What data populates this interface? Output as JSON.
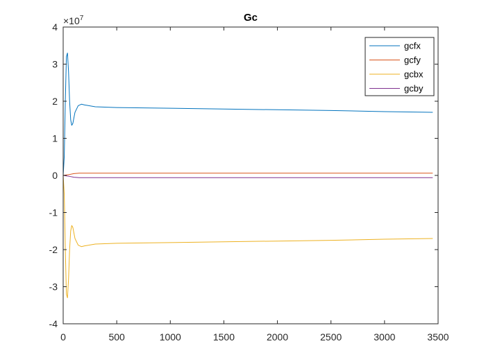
{
  "chart_data": {
    "type": "line",
    "title": "Gc",
    "xlabel": "",
    "ylabel": "",
    "xlim": [
      0,
      3500
    ],
    "ylim": [
      -4,
      4
    ],
    "y_scale_multiplier": "×10",
    "y_scale_exponent": "7",
    "x_ticks": [
      "0",
      "500",
      "1000",
      "1500",
      "2000",
      "2500",
      "3000",
      "3500"
    ],
    "y_ticks": [
      "-4",
      "-3",
      "-2",
      "-1",
      "0",
      "1",
      "2",
      "3",
      "4"
    ],
    "grid": false,
    "legend_position": "top-right",
    "series": [
      {
        "name": "gcfx",
        "color": "#0072BD",
        "points": [
          [
            0,
            0
          ],
          [
            10,
            0.5
          ],
          [
            20,
            2.0
          ],
          [
            30,
            3.2
          ],
          [
            40,
            3.3
          ],
          [
            50,
            2.8
          ],
          [
            60,
            2.0
          ],
          [
            70,
            1.5
          ],
          [
            80,
            1.35
          ],
          [
            90,
            1.4
          ],
          [
            110,
            1.7
          ],
          [
            140,
            1.88
          ],
          [
            170,
            1.92
          ],
          [
            200,
            1.9
          ],
          [
            300,
            1.85
          ],
          [
            500,
            1.83
          ],
          [
            1000,
            1.81
          ],
          [
            1500,
            1.79
          ],
          [
            2000,
            1.77
          ],
          [
            2500,
            1.75
          ],
          [
            3000,
            1.72
          ],
          [
            3450,
            1.7
          ]
        ]
      },
      {
        "name": "gcfy",
        "color": "#D95319",
        "points": [
          [
            0,
            0
          ],
          [
            50,
            0.02
          ],
          [
            100,
            0.05
          ],
          [
            150,
            0.06
          ],
          [
            200,
            0.06
          ],
          [
            1000,
            0.06
          ],
          [
            2000,
            0.06
          ],
          [
            3000,
            0.06
          ],
          [
            3450,
            0.06
          ]
        ]
      },
      {
        "name": "gcbx",
        "color": "#EDB120",
        "points": [
          [
            0,
            0
          ],
          [
            10,
            -0.5
          ],
          [
            20,
            -2.0
          ],
          [
            30,
            -3.2
          ],
          [
            40,
            -3.3
          ],
          [
            50,
            -2.8
          ],
          [
            60,
            -2.0
          ],
          [
            70,
            -1.5
          ],
          [
            80,
            -1.35
          ],
          [
            90,
            -1.4
          ],
          [
            110,
            -1.7
          ],
          [
            140,
            -1.88
          ],
          [
            170,
            -1.92
          ],
          [
            200,
            -1.9
          ],
          [
            300,
            -1.85
          ],
          [
            500,
            -1.83
          ],
          [
            1000,
            -1.81
          ],
          [
            1500,
            -1.79
          ],
          [
            2000,
            -1.77
          ],
          [
            2500,
            -1.75
          ],
          [
            3000,
            -1.72
          ],
          [
            3450,
            -1.7
          ]
        ]
      },
      {
        "name": "gcby",
        "color": "#7E2F8E",
        "points": [
          [
            0,
            0
          ],
          [
            50,
            -0.02
          ],
          [
            100,
            -0.05
          ],
          [
            150,
            -0.06
          ],
          [
            200,
            -0.06
          ],
          [
            1000,
            -0.06
          ],
          [
            2000,
            -0.06
          ],
          [
            3000,
            -0.06
          ],
          [
            3450,
            -0.06
          ]
        ]
      }
    ]
  }
}
